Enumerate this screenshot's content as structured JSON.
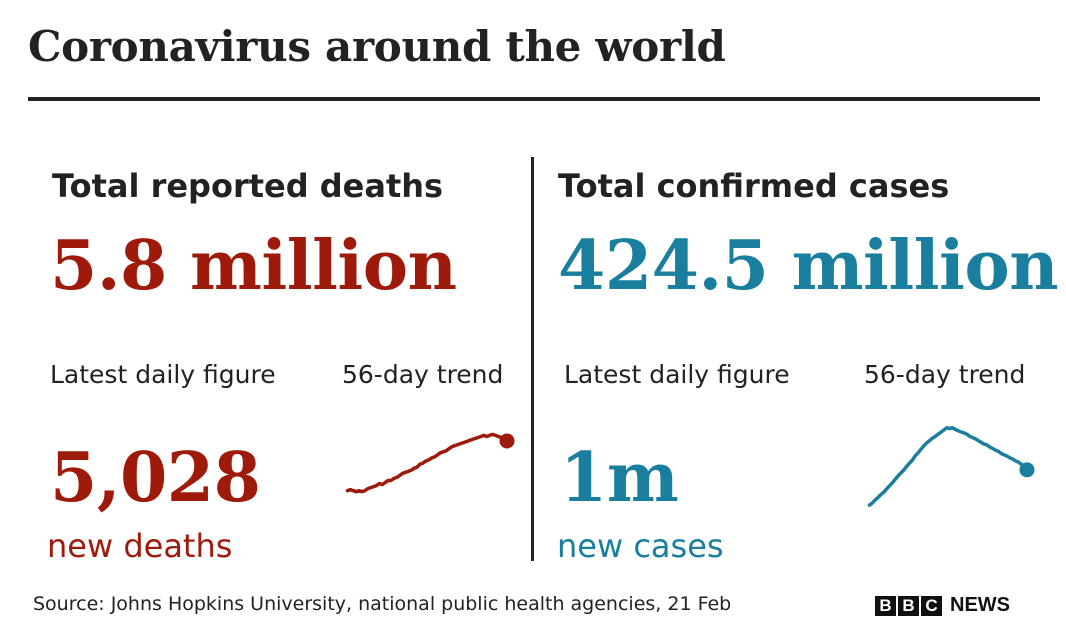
{
  "title": "Coronavirus around the world",
  "deaths": {
    "heading": "Total reported deaths",
    "total": "5.8 million",
    "latest_label": "Latest daily figure",
    "trend_label": "56-day trend",
    "latest_value": "5,028",
    "latest_unit": "new deaths",
    "color": "#9e1a0a"
  },
  "cases": {
    "heading": "Total confirmed cases",
    "total": "424.5 million",
    "latest_label": "Latest daily figure",
    "trend_label": "56-day trend",
    "latest_value": "1m",
    "latest_unit": "new cases",
    "color": "#1a7e9e"
  },
  "source": "Source: Johns Hopkins University, national public health agencies, 21 Feb",
  "logo": {
    "letters": [
      "B",
      "B",
      "C"
    ],
    "word": "NEWS"
  },
  "chart_data": [
    {
      "type": "line",
      "series": [
        {
          "values": [
            2.6,
            2.65,
            2.6,
            2.55,
            2.6,
            2.55,
            2.6,
            2.7,
            2.75,
            2.8,
            2.85,
            2.95,
            2.9,
            3.0,
            3.1,
            3.1,
            3.2,
            3.25,
            3.35,
            3.45,
            3.5,
            3.55,
            3.6,
            3.7,
            3.75,
            3.9,
            3.95,
            4.05,
            4.1,
            4.2,
            4.25,
            4.35,
            4.45,
            4.5,
            4.55,
            4.65,
            4.75,
            4.8,
            4.85,
            4.9,
            4.95,
            5.0,
            5.05,
            5.1,
            5.15,
            5.2,
            5.25,
            5.3,
            5.25,
            5.3,
            5.35,
            5.3,
            5.25,
            5.2,
            5.15,
            5.03
          ]
        }
      ],
      "ylim": [
        2.0,
        6.2
      ]
    },
    {
      "type": "line",
      "series": [
        {
          "values": [
            0.3,
            0.35,
            0.42,
            0.48,
            0.55,
            0.6,
            0.68,
            0.75,
            0.82,
            0.9,
            0.98,
            1.05,
            1.12,
            1.2,
            1.28,
            1.35,
            1.45,
            1.52,
            1.6,
            1.68,
            1.75,
            1.8,
            1.86,
            1.9,
            1.95,
            2.0,
            2.05,
            2.1,
            2.08,
            2.1,
            2.06,
            2.03,
            2.0,
            1.98,
            1.95,
            1.9,
            1.87,
            1.84,
            1.8,
            1.76,
            1.72,
            1.7,
            1.65,
            1.62,
            1.58,
            1.55,
            1.5,
            1.47,
            1.44,
            1.4,
            1.37,
            1.33,
            1.3,
            1.25,
            1.2,
            1.12
          ]
        }
      ],
      "ylim": [
        0.0,
        2.35
      ]
    }
  ]
}
